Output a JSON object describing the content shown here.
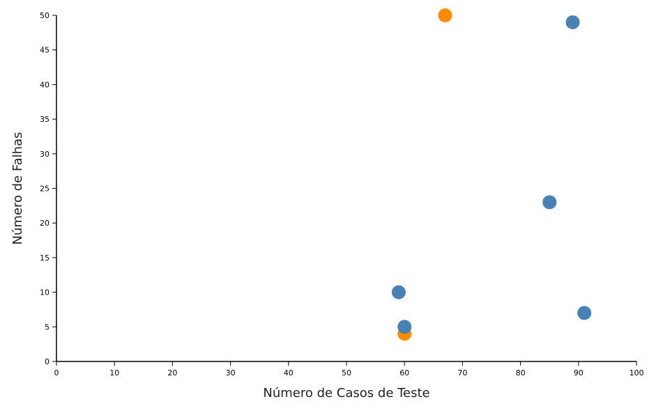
{
  "chart_data": {
    "type": "scatter",
    "title": "",
    "xlabel": "Número de Casos de Teste",
    "ylabel": "Número de Falhas",
    "xlim": [
      0,
      100
    ],
    "ylim": [
      0,
      50
    ],
    "x_ticks": [
      "0",
      "10",
      "20",
      "30",
      "40",
      "50",
      "60",
      "70",
      "80",
      "90",
      "100"
    ],
    "y_ticks": [
      "0",
      "5",
      "10",
      "15",
      "20",
      "25",
      "30",
      "35",
      "40",
      "45",
      "50"
    ],
    "grid": false,
    "legend": "none",
    "series": [
      {
        "color": "#ff8c00",
        "points": [
          {
            "x": 67,
            "y": 50
          },
          {
            "x": 60,
            "y": 4
          }
        ]
      },
      {
        "color": "#4682b4",
        "points": [
          {
            "x": 89,
            "y": 49
          },
          {
            "x": 85,
            "y": 23
          },
          {
            "x": 59,
            "y": 10
          },
          {
            "x": 60,
            "y": 5
          },
          {
            "x": 91,
            "y": 7
          }
        ]
      }
    ]
  }
}
